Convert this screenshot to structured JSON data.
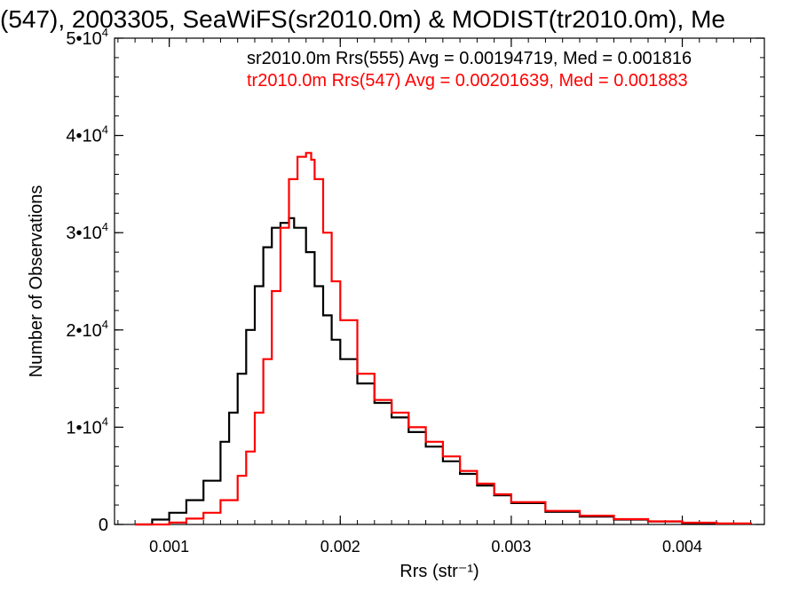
{
  "chart_data": {
    "type": "line",
    "title": "(547), 2003305, SeaWiFS(sr2010.0m) & MODIST(tr2010.0m), Me",
    "xlabel": "Rrs (str⁻¹)",
    "ylabel": "Number of Observations",
    "xlim": [
      0.00068,
      0.00448
    ],
    "ylim": [
      0,
      50000
    ],
    "x_ticks": [
      {
        "value": 0.001,
        "label": "0.001"
      },
      {
        "value": 0.002,
        "label": "0.002"
      },
      {
        "value": 0.003,
        "label": "0.003"
      },
      {
        "value": 0.004,
        "label": "0.004"
      }
    ],
    "y_ticks": [
      {
        "value": 0,
        "label": "0",
        "exp": ""
      },
      {
        "value": 10000,
        "label": "1•10",
        "exp": "4"
      },
      {
        "value": 20000,
        "label": "2•10",
        "exp": "4"
      },
      {
        "value": 30000,
        "label": "3•10",
        "exp": "4"
      },
      {
        "value": 40000,
        "label": "4•10",
        "exp": "4"
      },
      {
        "value": 50000,
        "label": "5•10",
        "exp": "4"
      }
    ],
    "annotations": [
      "sr2010.0m Rrs(555) Avg = 0.00194719, Med = 0.001816",
      "tr2010.0m Rrs(547) Avg = 0.00201639, Med = 0.001883"
    ],
    "grid": false,
    "series": [
      {
        "color": "#000000",
        "x": [
          0.0008,
          0.0009,
          0.001,
          0.0011,
          0.0012,
          0.0013,
          0.00135,
          0.0014,
          0.00145,
          0.0015,
          0.00155,
          0.0016,
          0.00165,
          0.0017,
          0.00173,
          0.00175,
          0.0018,
          0.00185,
          0.0019,
          0.00195,
          0.002,
          0.0021,
          0.0022,
          0.0023,
          0.0024,
          0.0025,
          0.0026,
          0.0027,
          0.0028,
          0.0029,
          0.003,
          0.0032,
          0.0034,
          0.0036,
          0.0038,
          0.004,
          0.0042,
          0.0044
        ],
        "values": [
          0,
          500,
          1200,
          2500,
          4500,
          8500,
          11500,
          15500,
          20000,
          24500,
          28500,
          30500,
          31000,
          31500,
          30500,
          30500,
          28000,
          24500,
          21500,
          19000,
          17000,
          14500,
          12500,
          11000,
          9500,
          8000,
          6500,
          5200,
          4000,
          3000,
          2200,
          1300,
          800,
          500,
          300,
          150,
          80,
          40
        ]
      },
      {
        "color": "#ff0000",
        "x": [
          0.0008,
          0.001,
          0.0011,
          0.0012,
          0.0013,
          0.0014,
          0.00145,
          0.0015,
          0.00155,
          0.0016,
          0.00165,
          0.0017,
          0.00175,
          0.0018,
          0.00183,
          0.00185,
          0.0019,
          0.00195,
          0.002,
          0.0021,
          0.0022,
          0.0023,
          0.0024,
          0.0025,
          0.0026,
          0.0027,
          0.0028,
          0.0029,
          0.003,
          0.0032,
          0.0034,
          0.0036,
          0.0038,
          0.004,
          0.0042,
          0.0044
        ],
        "values": [
          0,
          200,
          600,
          1200,
          2500,
          5000,
          7500,
          11500,
          17000,
          24000,
          30500,
          35500,
          37800,
          38200,
          37500,
          35500,
          30000,
          25000,
          21000,
          15500,
          12800,
          11500,
          10000,
          8500,
          7000,
          5500,
          4200,
          3100,
          2300,
          1400,
          900,
          550,
          320,
          180,
          100,
          50
        ]
      }
    ]
  }
}
